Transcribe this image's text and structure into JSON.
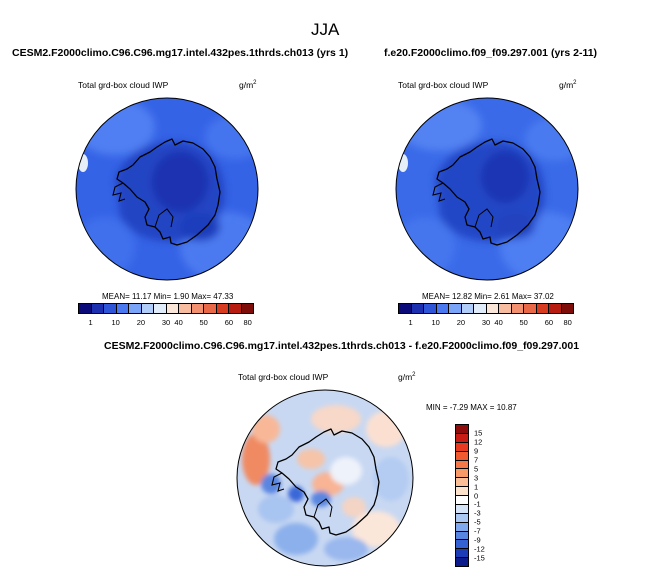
{
  "figure": {
    "title": "JJA",
    "left_panel": {
      "title": "CESM2.F2000climo.C96.C96.mg17.intel.432pes.1thrds.ch013 (yrs 1)",
      "variable": "Total grd-box cloud IWP",
      "units": "g/m",
      "units_exp": "2",
      "stats": "MEAN=  11.17  Min=   1.90  Max=  47.33"
    },
    "right_panel": {
      "title": "f.e20.F2000climo.f09_f09.297.001 (yrs 2-11)",
      "variable": "Total grd-box cloud IWP",
      "units": "g/m",
      "units_exp": "2",
      "stats": "MEAN=  12.82  Min=   2.61  Max=  37.02"
    },
    "diff_panel": {
      "title": "CESM2.F2000climo.C96.C96.mg17.intel.432pes.1thrds.ch013 - f.e20.F2000climo.f09_f09.297.001",
      "variable": "Total grd-box cloud IWP",
      "units": "g/m",
      "units_exp": "2",
      "stats": "MIN =  -7.29 MAX =  10.87"
    }
  },
  "chart_data": [
    {
      "type": "heatmap",
      "projection": "south-polar-stereographic",
      "title": "CESM2.F2000climo.C96.C96.mg17.intel.432pes.1thrds.ch013 (yrs 1)",
      "variable": "Total grd-box cloud IWP",
      "units": "g/m2",
      "mean": 11.17,
      "min": 1.9,
      "max": 47.33,
      "colorbar_levels": [
        "1",
        "10",
        "20",
        "30",
        "40",
        "50",
        "60",
        "80"
      ],
      "colorbar_colors": [
        "#0a0a7a",
        "#1c2fb0",
        "#2e54d8",
        "#4a78f0",
        "#7aa4f8",
        "#b0ccf8",
        "#e0ecfa",
        "#fbe6da",
        "#f8bca0",
        "#f29070",
        "#e86848",
        "#d83c20",
        "#b81c10",
        "#7e0c08"
      ]
    },
    {
      "type": "heatmap",
      "projection": "south-polar-stereographic",
      "title": "f.e20.F2000climo.f09_f09.297.001 (yrs 2-11)",
      "variable": "Total grd-box cloud IWP",
      "units": "g/m2",
      "mean": 12.82,
      "min": 2.61,
      "max": 37.02,
      "colorbar_levels": [
        "1",
        "10",
        "20",
        "30",
        "40",
        "50",
        "60",
        "80"
      ],
      "colorbar_colors": [
        "#0a0a7a",
        "#1c2fb0",
        "#2e54d8",
        "#4a78f0",
        "#7aa4f8",
        "#b0ccf8",
        "#e0ecfa",
        "#fbe6da",
        "#f8bca0",
        "#f29070",
        "#e86848",
        "#d83c20",
        "#b81c10",
        "#7e0c08"
      ]
    },
    {
      "type": "heatmap",
      "projection": "south-polar-stereographic",
      "title": "CESM2.F2000climo.C96.C96.mg17.intel.432pes.1thrds.ch013 - f.e20.F2000climo.f09_f09.297.001",
      "variable": "Total grd-box cloud IWP",
      "units": "g/m2",
      "min": -7.29,
      "max": 10.87,
      "colorbar_levels": [
        "15",
        "12",
        "9",
        "7",
        "5",
        "3",
        "1",
        "0",
        "-1",
        "-3",
        "-5",
        "-7",
        "-9",
        "-12",
        "-15"
      ],
      "colorbar_colors": [
        "#8e0c0c",
        "#c81c14",
        "#e83a20",
        "#f05a30",
        "#f57848",
        "#f89a68",
        "#fbbf98",
        "#fde2cc",
        "#ffffff",
        "#d6e4f8",
        "#aac8f2",
        "#80a8ec",
        "#5884e2",
        "#3462d4",
        "#1c3cb8",
        "#0c1c8c"
      ]
    }
  ]
}
